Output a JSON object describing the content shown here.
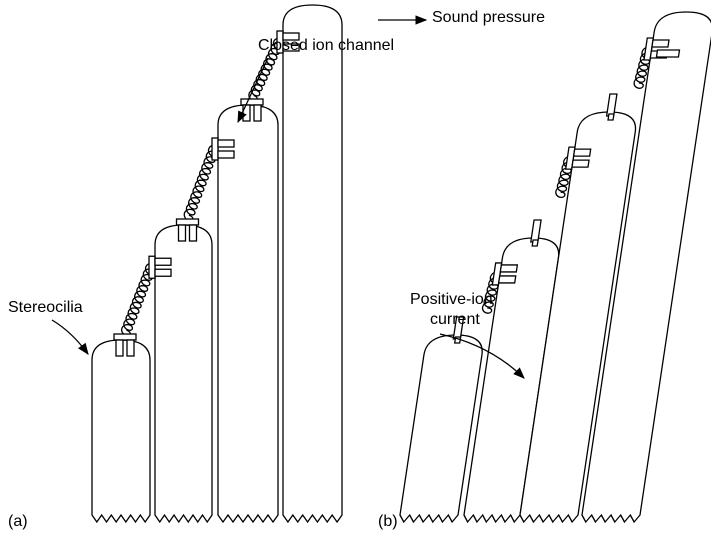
{
  "panel_a": {
    "label": "(a)",
    "annotations": [
      "Closed ion channel",
      "Stereocilia"
    ]
  },
  "panel_b": {
    "label": "(b)",
    "annotations": [
      "Sound pressure",
      "Positive-ion",
      "current"
    ]
  }
}
